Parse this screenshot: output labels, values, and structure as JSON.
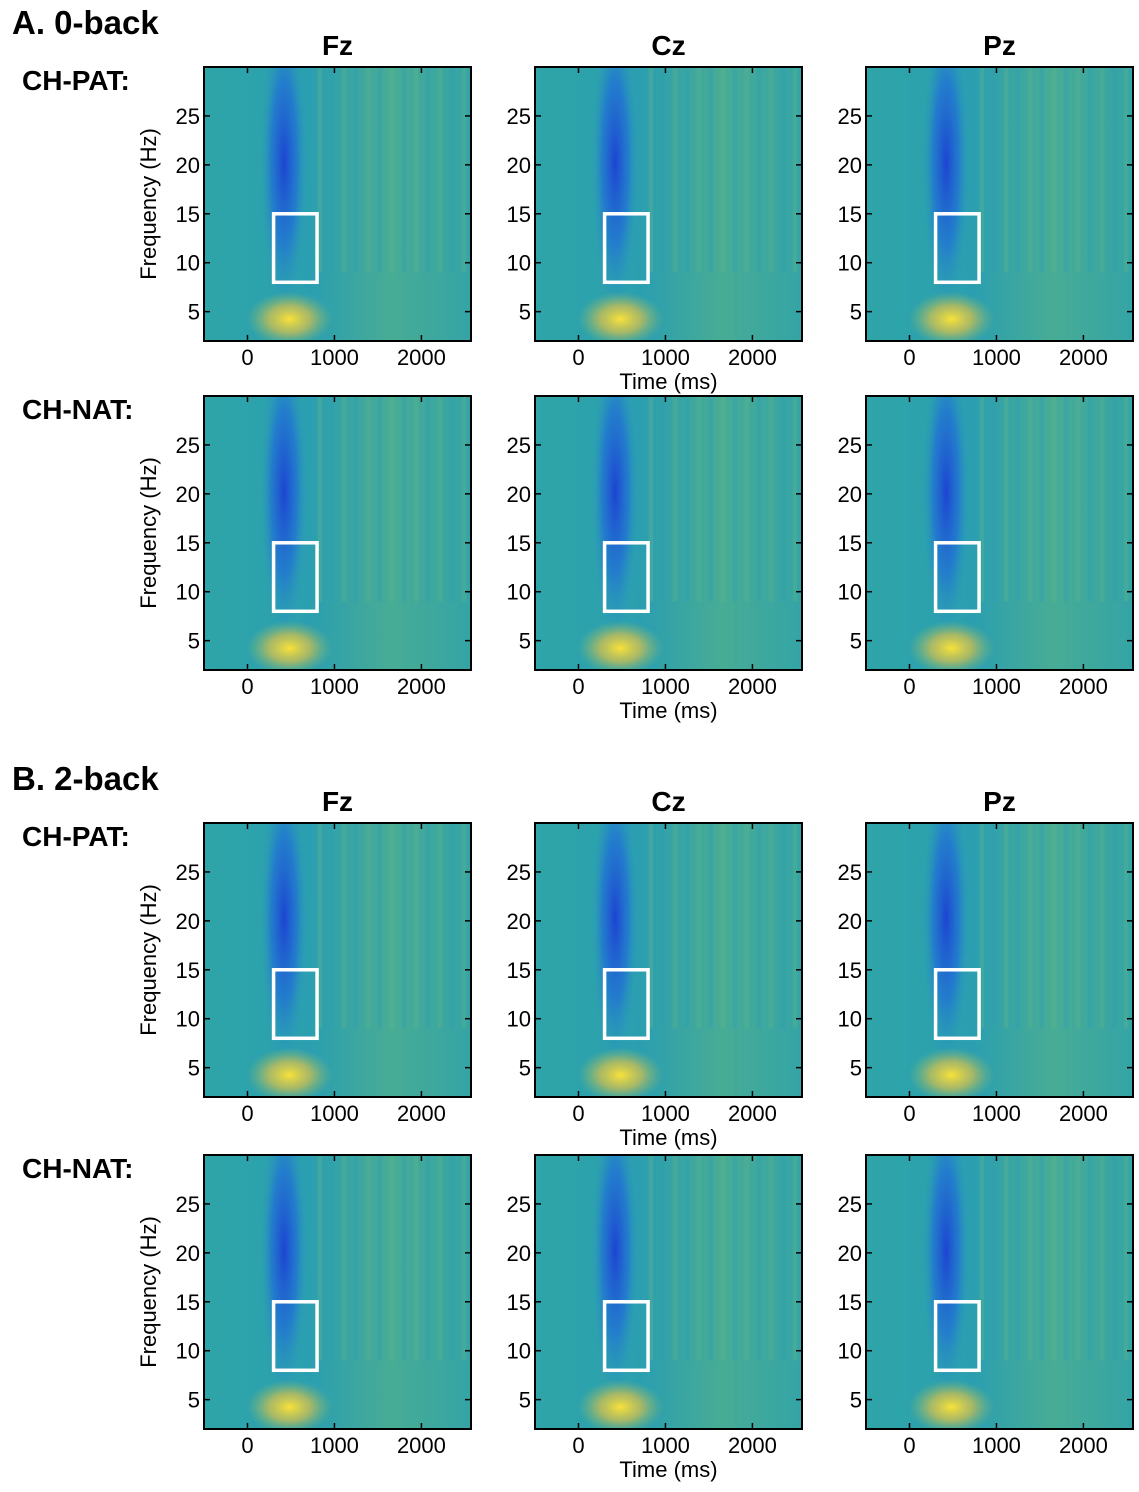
{
  "sections": [
    {
      "title": "A. 0-back",
      "columns": [
        "Fz",
        "Cz",
        "Pz"
      ],
      "rows": [
        "CH-PAT:",
        "CH-NAT:"
      ]
    },
    {
      "title": "B. 2-back",
      "columns": [
        "Fz",
        "Cz",
        "Pz"
      ],
      "rows": [
        "CH-PAT:",
        "CH-NAT:"
      ]
    }
  ],
  "chart_data": [
    {
      "type": "heatmap",
      "ylabel": "Frequency (Hz)",
      "xlim": [
        -500,
        2570
      ],
      "ylim": [
        2,
        30
      ],
      "xticks": [
        0,
        1000,
        2000
      ],
      "yticks": [
        5,
        10,
        15,
        20,
        25
      ],
      "roi": {
        "x": [
          300,
          800
        ],
        "y": [
          8,
          15
        ],
        "color": "#ffffff"
      }
    },
    {
      "type": "heatmap",
      "xlabel": "Time (ms)",
      "xlim": [
        -500,
        2570
      ],
      "ylim": [
        2,
        30
      ],
      "xticks": [
        0,
        1000,
        2000
      ],
      "yticks": [
        5,
        10,
        15,
        20,
        25
      ],
      "roi": {
        "x": [
          300,
          800
        ],
        "y": [
          8,
          15
        ],
        "color": "#ffffff"
      }
    },
    {
      "type": "heatmap",
      "xlim": [
        -500,
        2570
      ],
      "ylim": [
        2,
        30
      ],
      "xticks": [
        0,
        1000,
        2000
      ],
      "yticks": [
        5,
        10,
        15,
        20,
        25
      ],
      "roi": {
        "x": [
          300,
          800
        ],
        "y": [
          8,
          15
        ],
        "color": "#ffffff"
      }
    },
    {
      "type": "heatmap",
      "ylabel": "Frequency (Hz)",
      "xlim": [
        -500,
        2570
      ],
      "ylim": [
        2,
        30
      ],
      "xticks": [
        0,
        1000,
        2000
      ],
      "yticks": [
        5,
        10,
        15,
        20,
        25
      ],
      "roi": {
        "x": [
          300,
          800
        ],
        "y": [
          8,
          15
        ],
        "color": "#ffffff"
      }
    },
    {
      "type": "heatmap",
      "xlabel": "Time (ms)",
      "xlim": [
        -500,
        2570
      ],
      "ylim": [
        2,
        30
      ],
      "xticks": [
        0,
        1000,
        2000
      ],
      "yticks": [
        5,
        10,
        15,
        20,
        25
      ],
      "roi": {
        "x": [
          300,
          800
        ],
        "y": [
          8,
          15
        ],
        "color": "#ffffff"
      }
    },
    {
      "type": "heatmap",
      "xlim": [
        -500,
        2570
      ],
      "ylim": [
        2,
        30
      ],
      "xticks": [
        0,
        1000,
        2000
      ],
      "yticks": [
        5,
        10,
        15,
        20,
        25
      ],
      "roi": {
        "x": [
          300,
          800
        ],
        "y": [
          8,
          15
        ],
        "color": "#ffffff"
      }
    },
    {
      "type": "heatmap",
      "ylabel": "Frequency (Hz)",
      "xlim": [
        -500,
        2570
      ],
      "ylim": [
        2,
        30
      ],
      "xticks": [
        0,
        1000,
        2000
      ],
      "yticks": [
        5,
        10,
        15,
        20,
        25
      ],
      "roi": {
        "x": [
          300,
          800
        ],
        "y": [
          8,
          15
        ],
        "color": "#ffffff"
      }
    },
    {
      "type": "heatmap",
      "xlabel": "Time (ms)",
      "xlim": [
        -500,
        2570
      ],
      "ylim": [
        2,
        30
      ],
      "xticks": [
        0,
        1000,
        2000
      ],
      "yticks": [
        5,
        10,
        15,
        20,
        25
      ],
      "roi": {
        "x": [
          300,
          800
        ],
        "y": [
          8,
          15
        ],
        "color": "#ffffff"
      }
    },
    {
      "type": "heatmap",
      "xlim": [
        -500,
        2570
      ],
      "ylim": [
        2,
        30
      ],
      "xticks": [
        0,
        1000,
        2000
      ],
      "yticks": [
        5,
        10,
        15,
        20,
        25
      ],
      "roi": {
        "x": [
          300,
          800
        ],
        "y": [
          8,
          15
        ],
        "color": "#ffffff"
      }
    },
    {
      "type": "heatmap",
      "ylabel": "Frequency (Hz)",
      "xlim": [
        -500,
        2570
      ],
      "ylim": [
        2,
        30
      ],
      "xticks": [
        0,
        1000,
        2000
      ],
      "yticks": [
        5,
        10,
        15,
        20,
        25
      ],
      "roi": {
        "x": [
          300,
          800
        ],
        "y": [
          8,
          15
        ],
        "color": "#ffffff"
      }
    },
    {
      "type": "heatmap",
      "xlabel": "Time (ms)",
      "xlim": [
        -500,
        2570
      ],
      "ylim": [
        2,
        30
      ],
      "xticks": [
        0,
        1000,
        2000
      ],
      "yticks": [
        5,
        10,
        15,
        20,
        25
      ],
      "roi": {
        "x": [
          300,
          800
        ],
        "y": [
          8,
          15
        ],
        "color": "#ffffff"
      }
    },
    {
      "type": "heatmap",
      "xlim": [
        -500,
        2570
      ],
      "ylim": [
        2,
        30
      ],
      "xticks": [
        0,
        1000,
        2000
      ],
      "yticks": [
        5,
        10,
        15,
        20,
        25
      ],
      "roi": {
        "x": [
          300,
          800
        ],
        "y": [
          8,
          15
        ],
        "color": "#ffffff"
      }
    }
  ]
}
